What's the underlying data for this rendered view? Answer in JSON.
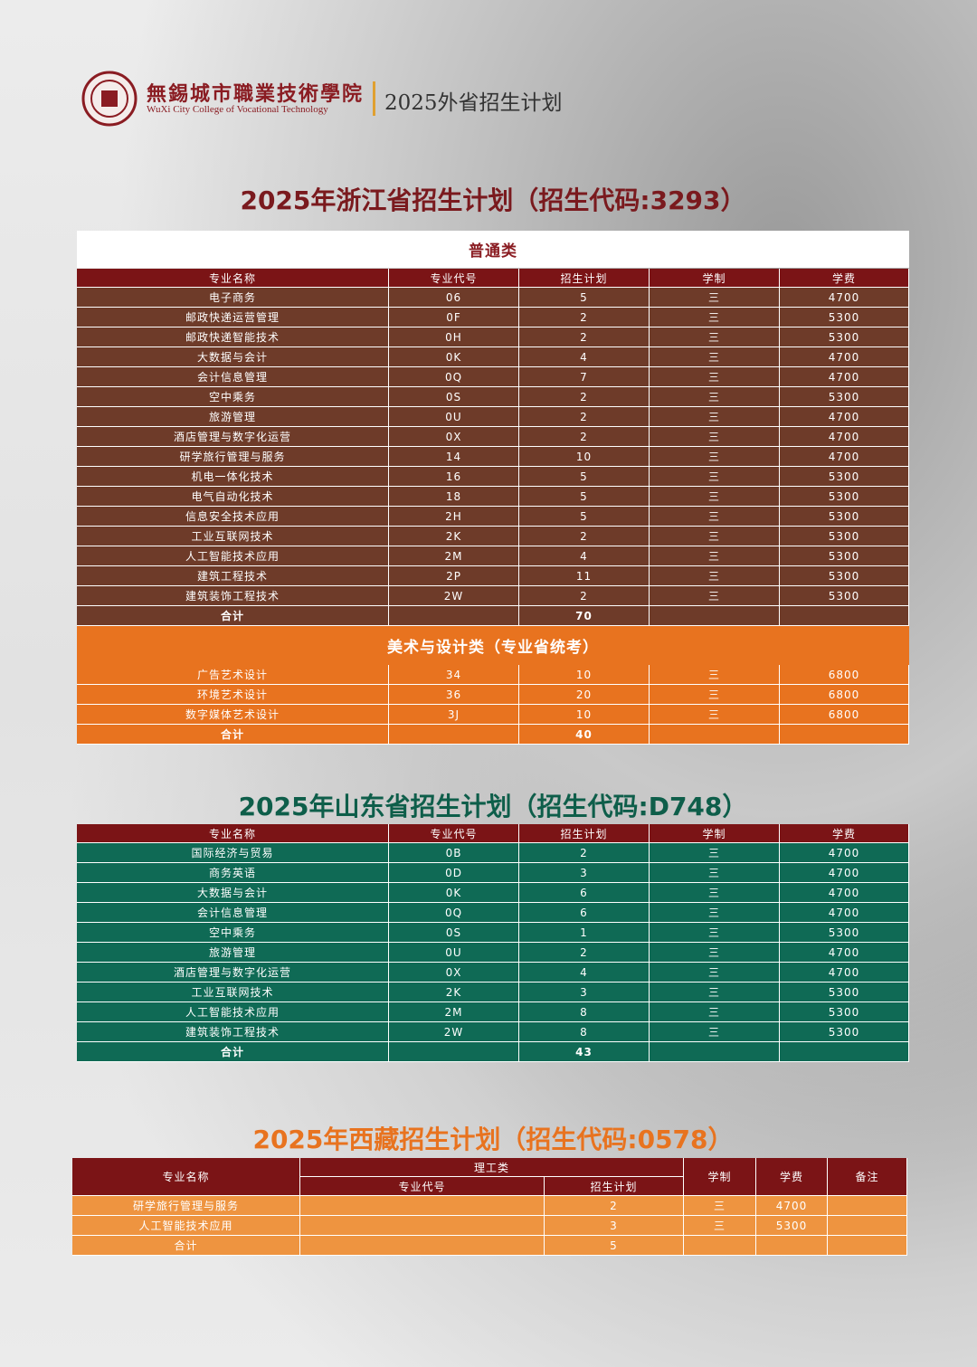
{
  "header": {
    "school_cn": "無錫城市職業技術學院",
    "school_en": "WuXi City College of Vocational Technology",
    "title": "2025外省招生计划"
  },
  "sections": [
    {
      "title": "2025年浙江省招生计划（招生代码:3293）",
      "columns": {
        "name": "专业名称",
        "code": "专业代号",
        "plan": "招生计划",
        "system": "学制",
        "fee": "学费"
      },
      "groups": [
        {
          "name": "普通类",
          "rows": [
            {
              "name": "电子商务",
              "code": "06",
              "plan": 5,
              "system": "三",
              "fee": 4700
            },
            {
              "name": "邮政快递运营管理",
              "code": "0F",
              "plan": 2,
              "system": "三",
              "fee": 5300
            },
            {
              "name": "邮政快递智能技术",
              "code": "0H",
              "plan": 2,
              "system": "三",
              "fee": 5300
            },
            {
              "name": "大数据与会计",
              "code": "0K",
              "plan": 4,
              "system": "三",
              "fee": 4700
            },
            {
              "name": "会计信息管理",
              "code": "0Q",
              "plan": 7,
              "system": "三",
              "fee": 4700
            },
            {
              "name": "空中乘务",
              "code": "0S",
              "plan": 2,
              "system": "三",
              "fee": 5300
            },
            {
              "name": "旅游管理",
              "code": "0U",
              "plan": 2,
              "system": "三",
              "fee": 4700
            },
            {
              "name": "酒店管理与数字化运营",
              "code": "0X",
              "plan": 2,
              "system": "三",
              "fee": 4700
            },
            {
              "name": "研学旅行管理与服务",
              "code": "14",
              "plan": 10,
              "system": "三",
              "fee": 4700
            },
            {
              "name": "机电一体化技术",
              "code": "16",
              "plan": 5,
              "system": "三",
              "fee": 5300
            },
            {
              "name": "电气自动化技术",
              "code": "18",
              "plan": 5,
              "system": "三",
              "fee": 5300
            },
            {
              "name": "信息安全技术应用",
              "code": "2H",
              "plan": 5,
              "system": "三",
              "fee": 5300
            },
            {
              "name": "工业互联网技术",
              "code": "2K",
              "plan": 2,
              "system": "三",
              "fee": 5300
            },
            {
              "name": "人工智能技术应用",
              "code": "2M",
              "plan": 4,
              "system": "三",
              "fee": 5300
            },
            {
              "name": "建筑工程技术",
              "code": "2P",
              "plan": 11,
              "system": "三",
              "fee": 5300
            },
            {
              "name": "建筑装饰工程技术",
              "code": "2W",
              "plan": 2,
              "system": "三",
              "fee": 5300
            },
            {
              "name": "合计",
              "plan": 70
            }
          ]
        },
        {
          "name": "美术与设计类（专业省统考）",
          "rows": [
            {
              "name": "广告艺术设计",
              "code": "34",
              "plan": 10,
              "system": "三",
              "fee": 6800
            },
            {
              "name": "环境艺术设计",
              "code": "36",
              "plan": 20,
              "system": "三",
              "fee": 6800
            },
            {
              "name": "数字媒体艺术设计",
              "code": "3J",
              "plan": 10,
              "system": "三",
              "fee": 6800
            },
            {
              "name": "合计",
              "plan": 40
            }
          ]
        }
      ]
    },
    {
      "title": "2025年山东省招生计划（招生代码:D748）",
      "columns": {
        "name": "专业名称",
        "code": "专业代号",
        "plan": "招生计划",
        "system": "学制",
        "fee": "学费"
      },
      "groups": [
        {
          "rows": [
            {
              "name": "国际经济与贸易",
              "code": "0B",
              "plan": 2,
              "system": "三",
              "fee": 4700
            },
            {
              "name": "商务英语",
              "code": "0D",
              "plan": 3,
              "system": "三",
              "fee": 4700
            },
            {
              "name": "大数据与会计",
              "code": "0K",
              "plan": 6,
              "system": "三",
              "fee": 4700
            },
            {
              "name": "会计信息管理",
              "code": "0Q",
              "plan": 6,
              "system": "三",
              "fee": 4700
            },
            {
              "name": "空中乘务",
              "code": "0S",
              "plan": 1,
              "system": "三",
              "fee": 5300
            },
            {
              "name": "旅游管理",
              "code": "0U",
              "plan": 2,
              "system": "三",
              "fee": 4700
            },
            {
              "name": "酒店管理与数字化运营",
              "code": "0X",
              "plan": 4,
              "system": "三",
              "fee": 4700
            },
            {
              "name": "工业互联网技术",
              "code": "2K",
              "plan": 3,
              "system": "三",
              "fee": 5300
            },
            {
              "name": "人工智能技术应用",
              "code": "2M",
              "plan": 8,
              "system": "三",
              "fee": 5300
            },
            {
              "name": "建筑装饰工程技术",
              "code": "2W",
              "plan": 8,
              "system": "三",
              "fee": 5300
            },
            {
              "name": "合计",
              "plan": 43
            }
          ]
        }
      ]
    },
    {
      "title": "2025年西藏招生计划（招生代码:0578）",
      "columns": {
        "name": "专业名称",
        "category": "理工类",
        "code": "专业代号",
        "plan": "招生计划",
        "system": "学制",
        "fee": "学费",
        "note": "备注"
      },
      "groups": [
        {
          "rows": [
            {
              "name": "研学旅行管理与服务",
              "plan": 2,
              "system": "三",
              "fee": 4700
            },
            {
              "name": "人工智能技术应用",
              "plan": 3,
              "system": "三",
              "fee": 5300
            },
            {
              "name": "合计",
              "plan": 5
            }
          ]
        }
      ]
    }
  ]
}
